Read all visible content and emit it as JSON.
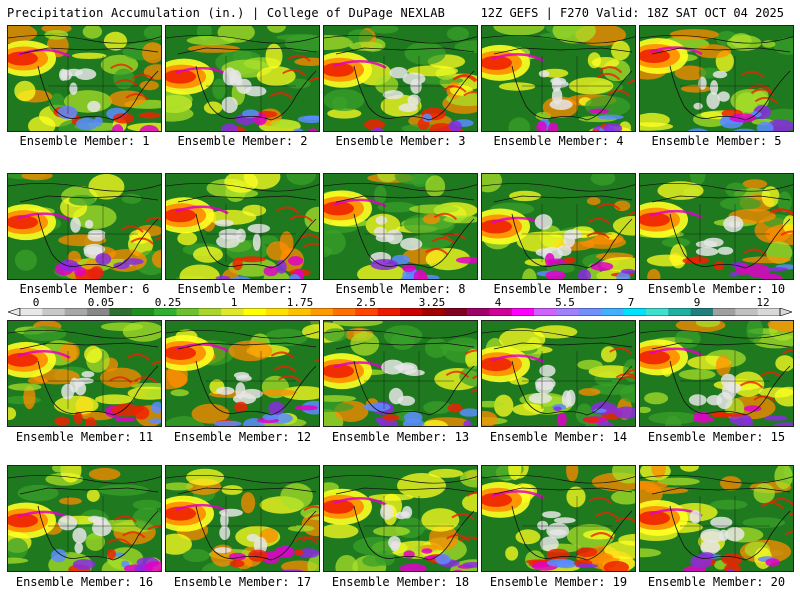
{
  "header": {
    "left": "Precipitation Accumulation (in.) | College of DuPage NEXLAB",
    "right": "12Z GEFS | F270 Valid: 18Z SAT OCT 04 2025"
  },
  "panels": [
    {
      "caption": "Ensemble Member: 1"
    },
    {
      "caption": "Ensemble Member: 2"
    },
    {
      "caption": "Ensemble Member: 3"
    },
    {
      "caption": "Ensemble Member: 4"
    },
    {
      "caption": "Ensemble Member: 5"
    },
    {
      "caption": "Ensemble Member: 6"
    },
    {
      "caption": "Ensemble Member: 7"
    },
    {
      "caption": "Ensemble Member: 8"
    },
    {
      "caption": "Ensemble Member: 9"
    },
    {
      "caption": "Ensemble Member: 10"
    },
    {
      "caption": "Ensemble Member: 11"
    },
    {
      "caption": "Ensemble Member: 12"
    },
    {
      "caption": "Ensemble Member: 13"
    },
    {
      "caption": "Ensemble Member: 14"
    },
    {
      "caption": "Ensemble Member: 15"
    },
    {
      "caption": "Ensemble Member: 16"
    },
    {
      "caption": "Ensemble Member: 17"
    },
    {
      "caption": "Ensemble Member: 18"
    },
    {
      "caption": "Ensemble Member: 19"
    },
    {
      "caption": "Ensemble Member: 20"
    }
  ],
  "colorbar": {
    "labels": [
      "0",
      "0.05",
      "0.25",
      "1",
      "1.75",
      "2.5",
      "3.25",
      "4",
      "5.5",
      "7",
      "9",
      "12"
    ],
    "colors": [
      "#e8e8e8",
      "#c8c8c8",
      "#a8a8a8",
      "#888888",
      "#2f6f2f",
      "#1f8f1f",
      "#2fb02f",
      "#6cc22c",
      "#a8d62a",
      "#dfe82a",
      "#ffff00",
      "#ffe000",
      "#ffc000",
      "#ff9a00",
      "#ff7000",
      "#ff4500",
      "#ee1a00",
      "#cc0000",
      "#a00000",
      "#800020",
      "#a0006a",
      "#d0009a",
      "#ff00ff",
      "#d060ff",
      "#a080ff",
      "#7090ff",
      "#40b0ff",
      "#00e0ff",
      "#40e0d0",
      "#20b0a0",
      "#208080",
      "#a0a0a0",
      "#c0c0c0",
      "#d8d8d8"
    ]
  }
}
